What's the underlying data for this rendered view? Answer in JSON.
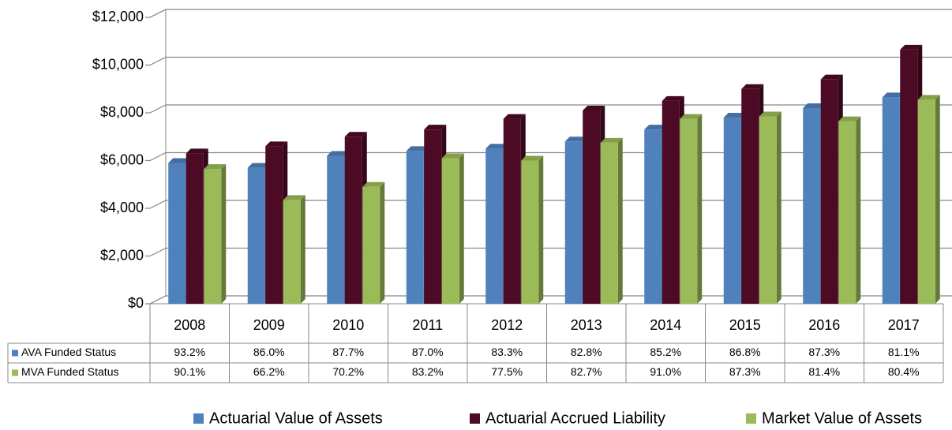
{
  "chart_data": {
    "type": "bar",
    "categories": [
      "2008",
      "2009",
      "2010",
      "2011",
      "2012",
      "2013",
      "2014",
      "2015",
      "2016",
      "2017"
    ],
    "series": [
      {
        "name": "Actuarial Value of Assets",
        "color": "#4f81bd",
        "values": [
          5900,
          5700,
          6200,
          6400,
          6500,
          6800,
          7300,
          7800,
          8200,
          8650
        ]
      },
      {
        "name": "Actuarial Accrued Liability",
        "color": "#4d0a24",
        "values": [
          6300,
          6600,
          7000,
          7300,
          7750,
          8100,
          8500,
          9000,
          9400,
          10650
        ]
      },
      {
        "name": "Market Value of Assets",
        "color": "#9bbb59",
        "values": [
          5650,
          4350,
          4900,
          6100,
          6000,
          6750,
          7750,
          7850,
          7650,
          8550
        ]
      }
    ],
    "ylim": [
      0,
      12000
    ],
    "yticks": [
      {
        "value": 0,
        "label": "$0"
      },
      {
        "value": 2000,
        "label": "$2,000"
      },
      {
        "value": 4000,
        "label": "$4,000"
      },
      {
        "value": 6000,
        "label": "$6,000"
      },
      {
        "value": 8000,
        "label": "$8,000"
      },
      {
        "value": 10000,
        "label": "$10,000"
      },
      {
        "value": 12000,
        "label": "$12,000"
      }
    ],
    "grid": true,
    "table": {
      "rows": [
        {
          "name": "AVA Funded Status",
          "color": "#4f81bd",
          "cells": [
            "93.2%",
            "86.0%",
            "87.7%",
            "87.0%",
            "83.3%",
            "82.8%",
            "85.2%",
            "86.8%",
            "87.3%",
            "81.1%"
          ]
        },
        {
          "name": "MVA Funded Status",
          "color": "#9bbb59",
          "cells": [
            "90.1%",
            "66.2%",
            "70.2%",
            "83.2%",
            "77.5%",
            "82.7%",
            "91.0%",
            "87.3%",
            "81.4%",
            "80.4%"
          ]
        }
      ]
    }
  }
}
